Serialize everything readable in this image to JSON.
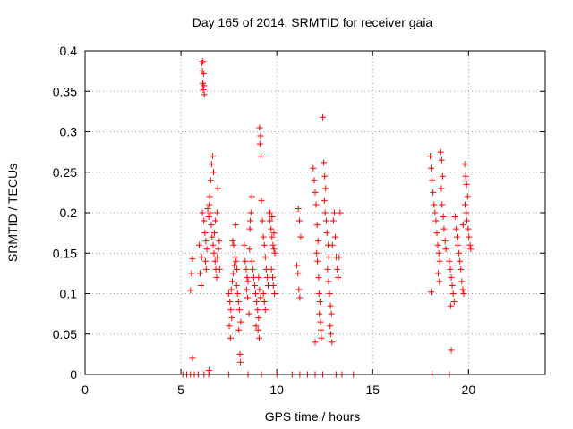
{
  "chart_data": {
    "type": "scatter",
    "title": "Day 165 of 2014, SRMTID for receiver gaia",
    "xlabel": "GPS time / hours",
    "ylabel": "SRMTID / TECUs",
    "xlim": [
      0,
      24
    ],
    "ylim": [
      0,
      0.4
    ],
    "x_ticks": [
      0,
      5,
      10,
      15,
      20
    ],
    "x_tick_labels": [
      "0",
      "5",
      "10",
      "15",
      "20"
    ],
    "y_ticks": [
      0,
      0.05,
      0.1,
      0.15,
      0.2,
      0.25,
      0.3,
      0.35,
      0.4
    ],
    "y_tick_labels": [
      "0",
      "0.05",
      "0.1",
      "0.15",
      "0.2",
      "0.25",
      "0.3",
      "0.35",
      "0.4"
    ],
    "grid": true,
    "marker": "+",
    "marker_color": "#ff0000",
    "series": [
      {
        "name": "SRMTID",
        "points": [
          [
            5.1,
            0
          ],
          [
            5.3,
            0
          ],
          [
            5.5,
            0
          ],
          [
            5.7,
            0
          ],
          [
            5.9,
            0
          ],
          [
            6.2,
            0
          ],
          [
            6.45,
            0
          ],
          [
            7.5,
            0
          ],
          [
            8.5,
            0
          ],
          [
            9.2,
            0
          ],
          [
            10.0,
            0
          ],
          [
            10.8,
            0
          ],
          [
            11.2,
            0
          ],
          [
            11.6,
            0
          ],
          [
            12.0,
            0
          ],
          [
            12.4,
            0
          ],
          [
            13.1,
            0
          ],
          [
            13.4,
            0
          ],
          [
            14.0,
            0
          ],
          [
            18.1,
            0
          ],
          [
            19.0,
            0
          ],
          [
            5.6,
            0.143
          ],
          [
            5.55,
            0.125
          ],
          [
            5.5,
            0.104
          ],
          [
            5.6,
            0.02
          ],
          [
            5.95,
            0.16
          ],
          [
            6.0,
            0.125
          ],
          [
            6.05,
            0.11
          ],
          [
            6.08,
            0.145
          ],
          [
            6.1,
            0.385
          ],
          [
            6.15,
            0.387
          ],
          [
            6.12,
            0.375
          ],
          [
            6.18,
            0.372
          ],
          [
            6.14,
            0.36
          ],
          [
            6.2,
            0.357
          ],
          [
            6.16,
            0.352
          ],
          [
            6.22,
            0.346
          ],
          [
            6.12,
            0.2
          ],
          [
            6.2,
            0.19
          ],
          [
            6.25,
            0.175
          ],
          [
            6.3,
            0.165
          ],
          [
            6.35,
            0.155
          ],
          [
            6.28,
            0.14
          ],
          [
            6.32,
            0.13
          ],
          [
            6.4,
            0.205
          ],
          [
            6.45,
            0.195
          ],
          [
            6.5,
            0.22
          ],
          [
            6.55,
            0.24
          ],
          [
            6.6,
            0.26
          ],
          [
            6.65,
            0.27
          ],
          [
            6.7,
            0.25
          ],
          [
            6.48,
            0.21
          ],
          [
            6.52,
            0.2
          ],
          [
            6.58,
            0.185
          ],
          [
            6.62,
            0.17
          ],
          [
            6.68,
            0.16
          ],
          [
            6.72,
            0.15
          ],
          [
            6.78,
            0.14
          ],
          [
            6.82,
            0.13
          ],
          [
            6.86,
            0.12
          ],
          [
            6.9,
            0.145
          ],
          [
            6.95,
            0.155
          ],
          [
            7.0,
            0.165
          ],
          [
            6.75,
            0.175
          ],
          [
            6.8,
            0.19
          ],
          [
            6.88,
            0.2
          ],
          [
            6.92,
            0.23
          ],
          [
            7.02,
            0.13
          ],
          [
            6.46,
            0.005
          ],
          [
            7.5,
            0.1
          ],
          [
            7.55,
            0.09
          ],
          [
            7.6,
            0.08
          ],
          [
            7.65,
            0.07
          ],
          [
            7.52,
            0.06
          ],
          [
            7.58,
            0.045
          ],
          [
            7.62,
            0.105
          ],
          [
            7.68,
            0.115
          ],
          [
            7.72,
            0.125
          ],
          [
            7.78,
            0.135
          ],
          [
            7.82,
            0.145
          ],
          [
            7.88,
            0.14
          ],
          [
            7.92,
            0.13
          ],
          [
            7.7,
            0.165
          ],
          [
            7.75,
            0.16
          ],
          [
            7.85,
            0.185
          ],
          [
            7.9,
            0.11
          ],
          [
            7.95,
            0.1
          ],
          [
            8.0,
            0.09
          ],
          [
            8.05,
            0.08
          ],
          [
            8.02,
            0.055
          ],
          [
            8.08,
            0.025
          ],
          [
            8.1,
            0.015
          ],
          [
            8.12,
            0.065
          ],
          [
            8.3,
            0.16
          ],
          [
            8.35,
            0.14
          ],
          [
            8.4,
            0.13
          ],
          [
            8.45,
            0.12
          ],
          [
            8.5,
            0.115
          ],
          [
            8.42,
            0.105
          ],
          [
            8.48,
            0.095
          ],
          [
            8.55,
            0.075
          ],
          [
            8.6,
            0.18
          ],
          [
            8.65,
            0.2
          ],
          [
            8.7,
            0.22
          ],
          [
            8.62,
            0.19
          ],
          [
            8.58,
            0.155
          ],
          [
            8.7,
            0.14
          ],
          [
            8.75,
            0.13
          ],
          [
            8.8,
            0.12
          ],
          [
            8.85,
            0.11
          ],
          [
            8.9,
            0.1
          ],
          [
            8.95,
            0.09
          ],
          [
            9.0,
            0.08
          ],
          [
            9.05,
            0.07
          ],
          [
            9.02,
            0.055
          ],
          [
            9.08,
            0.045
          ],
          [
            8.92,
            0.06
          ],
          [
            9.1,
            0.305
          ],
          [
            9.15,
            0.295
          ],
          [
            9.12,
            0.285
          ],
          [
            9.18,
            0.27
          ],
          [
            9.2,
            0.215
          ],
          [
            9.25,
            0.19
          ],
          [
            9.3,
            0.17
          ],
          [
            9.35,
            0.16
          ],
          [
            9.4,
            0.145
          ],
          [
            9.45,
            0.13
          ],
          [
            9.5,
            0.12
          ],
          [
            9.55,
            0.11
          ],
          [
            9.3,
            0.1
          ],
          [
            9.35,
            0.09
          ],
          [
            9.4,
            0.08
          ],
          [
            9.6,
            0.2
          ],
          [
            9.65,
            0.19
          ],
          [
            9.7,
            0.18
          ],
          [
            9.75,
            0.17
          ],
          [
            9.8,
            0.16
          ],
          [
            9.85,
            0.155
          ],
          [
            9.9,
            0.15
          ],
          [
            9.72,
            0.13
          ],
          [
            9.78,
            0.12
          ],
          [
            9.82,
            0.11
          ],
          [
            9.88,
            0.1
          ],
          [
            9.65,
            0.2
          ],
          [
            9.75,
            0.195
          ],
          [
            9.85,
            0.175
          ],
          [
            9.05,
            0.12
          ],
          [
            9.1,
            0.105
          ],
          [
            9.15,
            0.095
          ],
          [
            11.1,
            0.125
          ],
          [
            11.15,
            0.105
          ],
          [
            11.2,
            0.095
          ],
          [
            11.12,
            0.205
          ],
          [
            11.18,
            0.19
          ],
          [
            11.25,
            0.17
          ],
          [
            11.05,
            0.135
          ],
          [
            11.9,
            0.255
          ],
          [
            11.95,
            0.24
          ],
          [
            12.0,
            0.225
          ],
          [
            12.05,
            0.21
          ],
          [
            12.1,
            0.185
          ],
          [
            12.15,
            0.165
          ],
          [
            12.08,
            0.15
          ],
          [
            12.12,
            0.14
          ],
          [
            12.18,
            0.12
          ],
          [
            12.2,
            0.1
          ],
          [
            12.25,
            0.09
          ],
          [
            12.22,
            0.075
          ],
          [
            12.28,
            0.065
          ],
          [
            12.3,
            0.055
          ],
          [
            12.32,
            0.045
          ],
          [
            12.0,
            0.04
          ],
          [
            12.4,
            0.318
          ],
          [
            12.45,
            0.262
          ],
          [
            12.5,
            0.245
          ],
          [
            12.55,
            0.23
          ],
          [
            12.48,
            0.215
          ],
          [
            12.52,
            0.2
          ],
          [
            12.58,
            0.19
          ],
          [
            12.62,
            0.175
          ],
          [
            12.68,
            0.16
          ],
          [
            12.72,
            0.145
          ],
          [
            12.65,
            0.13
          ],
          [
            12.7,
            0.115
          ],
          [
            12.75,
            0.1
          ],
          [
            12.8,
            0.085
          ],
          [
            12.85,
            0.075
          ],
          [
            12.78,
            0.06
          ],
          [
            12.82,
            0.05
          ],
          [
            12.88,
            0.04
          ],
          [
            12.9,
            0.16
          ],
          [
            12.95,
            0.19
          ],
          [
            13.0,
            0.2
          ],
          [
            13.05,
            0.17
          ],
          [
            13.1,
            0.145
          ],
          [
            13.15,
            0.13
          ],
          [
            13.2,
            0.12
          ],
          [
            13.3,
            0.2
          ],
          [
            13.25,
            0.145
          ],
          [
            18.0,
            0.27
          ],
          [
            18.05,
            0.255
          ],
          [
            18.1,
            0.24
          ],
          [
            18.15,
            0.225
          ],
          [
            18.2,
            0.21
          ],
          [
            18.25,
            0.2
          ],
          [
            18.3,
            0.19
          ],
          [
            18.35,
            0.175
          ],
          [
            18.4,
            0.16
          ],
          [
            18.45,
            0.15
          ],
          [
            18.5,
            0.14
          ],
          [
            18.42,
            0.125
          ],
          [
            18.48,
            0.115
          ],
          [
            18.05,
            0.102
          ],
          [
            18.55,
            0.275
          ],
          [
            18.6,
            0.265
          ],
          [
            18.65,
            0.245
          ],
          [
            18.58,
            0.23
          ],
          [
            18.62,
            0.21
          ],
          [
            18.68,
            0.195
          ],
          [
            18.72,
            0.18
          ],
          [
            18.78,
            0.165
          ],
          [
            18.82,
            0.155
          ],
          [
            19.0,
            0.14
          ],
          [
            19.05,
            0.13
          ],
          [
            19.1,
            0.12
          ],
          [
            19.15,
            0.11
          ],
          [
            19.2,
            0.1
          ],
          [
            19.25,
            0.09
          ],
          [
            19.08,
            0.085
          ],
          [
            19.3,
            0.195
          ],
          [
            19.35,
            0.18
          ],
          [
            19.4,
            0.17
          ],
          [
            19.45,
            0.16
          ],
          [
            19.5,
            0.15
          ],
          [
            19.55,
            0.14
          ],
          [
            19.6,
            0.13
          ],
          [
            19.65,
            0.115
          ],
          [
            19.7,
            0.105
          ],
          [
            19.75,
            0.1
          ],
          [
            19.8,
            0.26
          ],
          [
            19.85,
            0.245
          ],
          [
            19.9,
            0.235
          ],
          [
            19.95,
            0.22
          ],
          [
            19.82,
            0.21
          ],
          [
            19.88,
            0.2
          ],
          [
            19.92,
            0.19
          ],
          [
            19.98,
            0.18
          ],
          [
            20.02,
            0.17
          ],
          [
            20.08,
            0.16
          ],
          [
            20.12,
            0.155
          ],
          [
            19.72,
            0.185
          ],
          [
            19.1,
            0.03
          ]
        ]
      }
    ]
  }
}
